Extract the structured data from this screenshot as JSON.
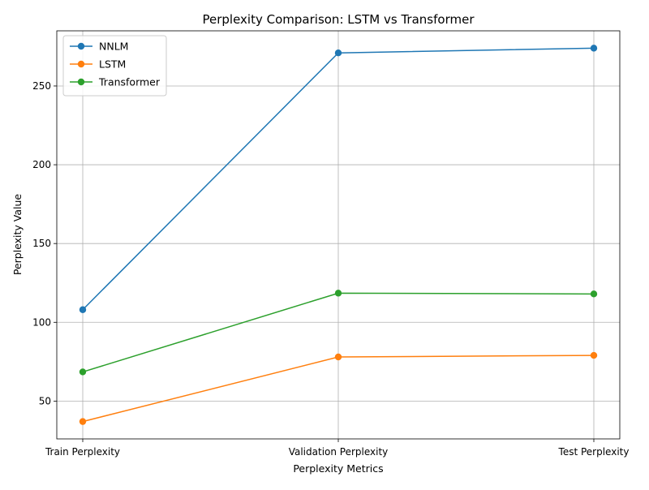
{
  "chart_data": {
    "type": "line",
    "title": "Perplexity Comparison: LSTM vs Transformer",
    "xlabel": "Perplexity Metrics",
    "ylabel": "Perplexity Value",
    "categories": [
      "Train Perplexity",
      "Validation Perplexity",
      "Test Perplexity"
    ],
    "ylim": [
      26,
      285
    ],
    "yticks": [
      50,
      100,
      150,
      200,
      250
    ],
    "grid": true,
    "legend_position": "top-left",
    "series": [
      {
        "name": "NNLM",
        "color": "#1f77b4",
        "values": [
          108,
          271,
          274
        ]
      },
      {
        "name": "LSTM",
        "color": "#ff7f0e",
        "values": [
          37,
          78,
          79
        ]
      },
      {
        "name": "Transformer",
        "color": "#2ca02c",
        "values": [
          68.5,
          118.5,
          118
        ]
      }
    ]
  }
}
